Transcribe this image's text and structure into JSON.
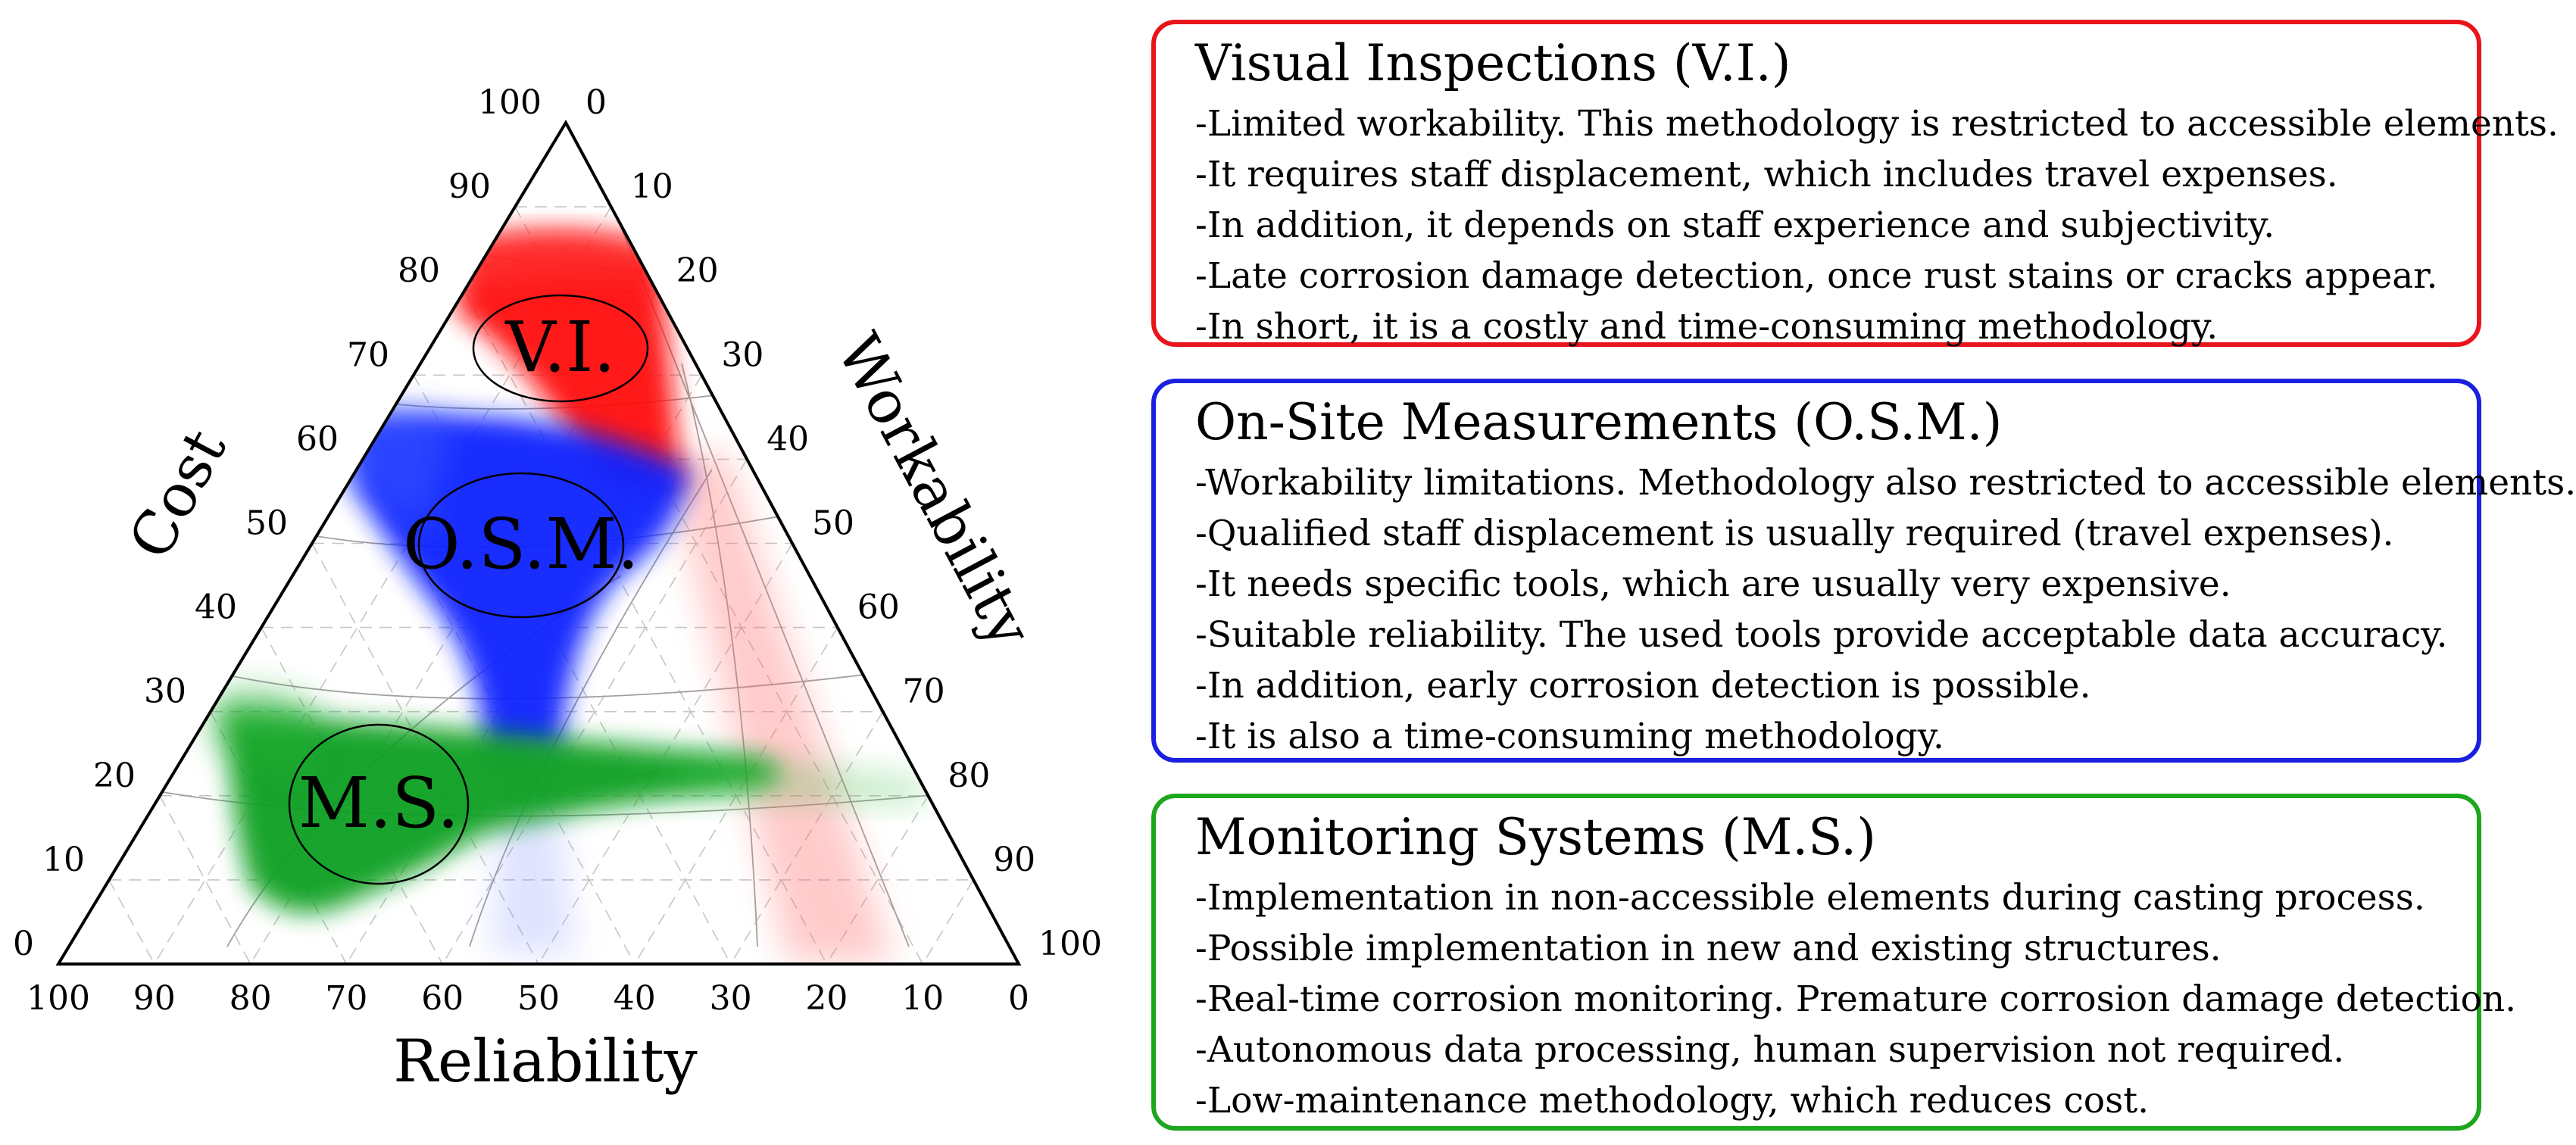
{
  "diagram": {
    "axes": {
      "cost": {
        "title": "Cost",
        "ticks": [
          "100",
          "90",
          "80",
          "70",
          "60",
          "50",
          "40",
          "30",
          "20",
          "10",
          "0"
        ]
      },
      "workability": {
        "title": "Workability",
        "ticks": [
          "0",
          "10",
          "20",
          "30",
          "40",
          "50",
          "60",
          "70",
          "80",
          "90",
          "100"
        ]
      },
      "reliability": {
        "title": "Reliability",
        "ticks": [
          "100",
          "90",
          "80",
          "70",
          "60",
          "50",
          "40",
          "30",
          "20",
          "10",
          "0"
        ]
      }
    },
    "regions": [
      {
        "label": "V.I.",
        "color": "#ff0000"
      },
      {
        "label": "O.S.M.",
        "color": "#0a26ff"
      },
      {
        "label": "M.S.",
        "color": "#0da21d"
      }
    ]
  },
  "panels": {
    "vi": {
      "title": "Visual Inspections (V.I.)",
      "color": "#e8141c",
      "items": [
        "-Limited workability. This methodology is restricted to accessible elements.",
        "-It requires staff displacement, which includes travel expenses.",
        "-In addition, it depends on staff experience and subjectivity.",
        "-Late corrosion damage detection, once rust stains or cracks appear.",
        "-In short, it is a costly and time-consuming methodology."
      ]
    },
    "osm": {
      "title": "On-Site Measurements (O.S.M.)",
      "color": "#1a20e0",
      "items": [
        "-Workability limitations. Methodology also restricted to accessible elements.",
        "-Qualified staff displacement is usually required (travel expenses).",
        "-It needs specific tools, which are usually very expensive.",
        "-Suitable reliability. The used tools provide acceptable data accuracy.",
        "-In addition, early corrosion detection is possible.",
        "-It is also a time-consuming methodology."
      ]
    },
    "ms": {
      "title": "Monitoring Systems (M.S.)",
      "color": "#1ca71c",
      "items": [
        "-Implementation in non-accessible elements during casting process.",
        "-Possible implementation in new and existing structures.",
        "-Real-time corrosion monitoring. Premature corrosion damage detection.",
        "-Autonomous data processing, human supervision not required.",
        "-Low-maintenance methodology, which reduces cost."
      ]
    }
  }
}
